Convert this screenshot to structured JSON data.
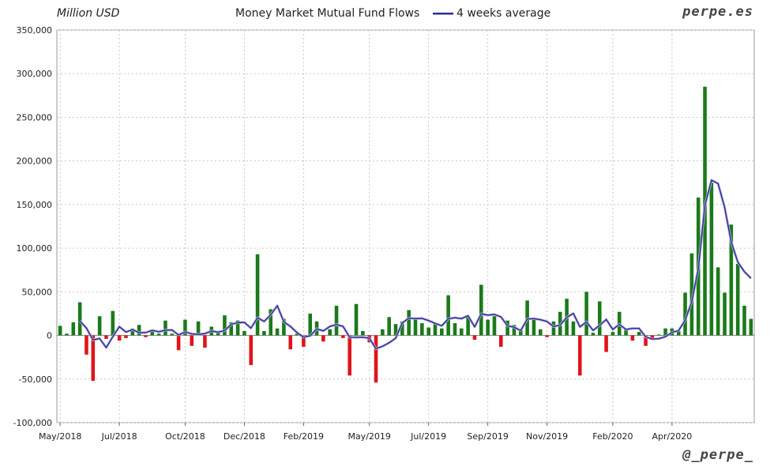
{
  "header": {
    "unit": "Million USD",
    "title": "Money Market Mutual Fund Flows",
    "legend_label": "4 weeks average",
    "brand": "perpe.es",
    "credit": "@_perpe_"
  },
  "colors": {
    "positive": "#1a7a1a",
    "negative": "#e0141b",
    "average_line": "#2e2a8c",
    "grid": "#c8c8c8"
  },
  "chart_data": {
    "type": "bar",
    "title": "Money Market Mutual Fund Flows",
    "ylabel": "Million USD",
    "ylim": [
      -100000,
      350000
    ],
    "yticks": [
      350000,
      300000,
      250000,
      200000,
      150000,
      100000,
      50000,
      0,
      -50000,
      -100000
    ],
    "ytick_labels": [
      "350,000",
      "300,000",
      "250,000",
      "200,000",
      "150,000",
      "100,000",
      "50,000",
      "0",
      "-50,000",
      "-100,000"
    ],
    "xtick_labels": [
      "May/2018",
      "Jul/2018",
      "Oct/2018",
      "Dec/2018",
      "Feb/2019",
      "May/2019",
      "Jul/2019",
      "Sep/2019",
      "Nov/2019",
      "Feb/2020",
      "Apr/2020"
    ],
    "xtick_positions": [
      0,
      9,
      19,
      28,
      37,
      47,
      56,
      65,
      74,
      84,
      93
    ],
    "grid": true,
    "legend": "top-center",
    "series": [
      {
        "name": "",
        "kind": "bar",
        "values": [
          11000,
          2000,
          15000,
          38000,
          -22000,
          -52000,
          22000,
          -4000,
          28000,
          -6000,
          -3000,
          8000,
          12000,
          -2000,
          5000,
          2000,
          17000,
          2000,
          -17000,
          18000,
          -12000,
          16000,
          -14000,
          10000,
          3000,
          23000,
          15000,
          17000,
          5000,
          -34000,
          93000,
          5000,
          30000,
          8000,
          19000,
          -16000,
          2000,
          -13000,
          25000,
          16000,
          -7000,
          7000,
          34000,
          -3000,
          -46000,
          36000,
          5000,
          -8000,
          -54000,
          7000,
          21000,
          13000,
          16000,
          29000,
          19000,
          14000,
          9000,
          13000,
          8000,
          46000,
          14000,
          8000,
          22000,
          -5000,
          58000,
          18000,
          22000,
          -13000,
          17000,
          12000,
          6000,
          40000,
          19000,
          7000,
          -2000,
          16000,
          27000,
          42000,
          16000,
          -46000,
          50000,
          3000,
          39000,
          -19000,
          4000,
          27000,
          7000,
          -6000,
          4000,
          -12000,
          -3000,
          1000,
          8000,
          8000,
          5000,
          49000,
          94000,
          158000,
          285000,
          175000,
          78000,
          49000,
          127000,
          82000,
          34000,
          19000
        ],
        "color_rule": "positive green, negative red"
      },
      {
        "name": "4 weeks average",
        "kind": "line",
        "values": [
          null,
          null,
          null,
          16500,
          8250,
          -5250,
          -3500,
          -14000,
          -1500,
          10000,
          3750,
          6750,
          3000,
          3250,
          5750,
          4250,
          6000,
          6250,
          500,
          4000,
          1750,
          1250,
          2000,
          5000,
          3750,
          5500,
          12750,
          14500,
          15000,
          8250,
          20250,
          16000,
          23500,
          34000,
          15500,
          10250,
          3250,
          -2000,
          -500,
          7500,
          5250,
          10250,
          12500,
          10250,
          -2000,
          -2250,
          -2000,
          -3250,
          -15250,
          -12500,
          -8500,
          -3250,
          14250,
          19750,
          19250,
          19500,
          17000,
          13750,
          11000,
          19000,
          20250,
          19250,
          22500,
          9750,
          24750,
          23250,
          24000,
          21250,
          11000,
          9500,
          5500,
          18750,
          19250,
          18000,
          16000,
          10000,
          12000,
          20500,
          25250,
          9750,
          15500,
          5750,
          11500,
          18250,
          6750,
          12750,
          6750,
          8000,
          8000,
          -1750,
          -4250,
          -3750,
          -1500,
          3500,
          5500,
          17500,
          38750,
          76500,
          149000,
          178000,
          174000,
          146750,
          107250,
          84000,
          73000,
          65500
        ]
      }
    ]
  }
}
